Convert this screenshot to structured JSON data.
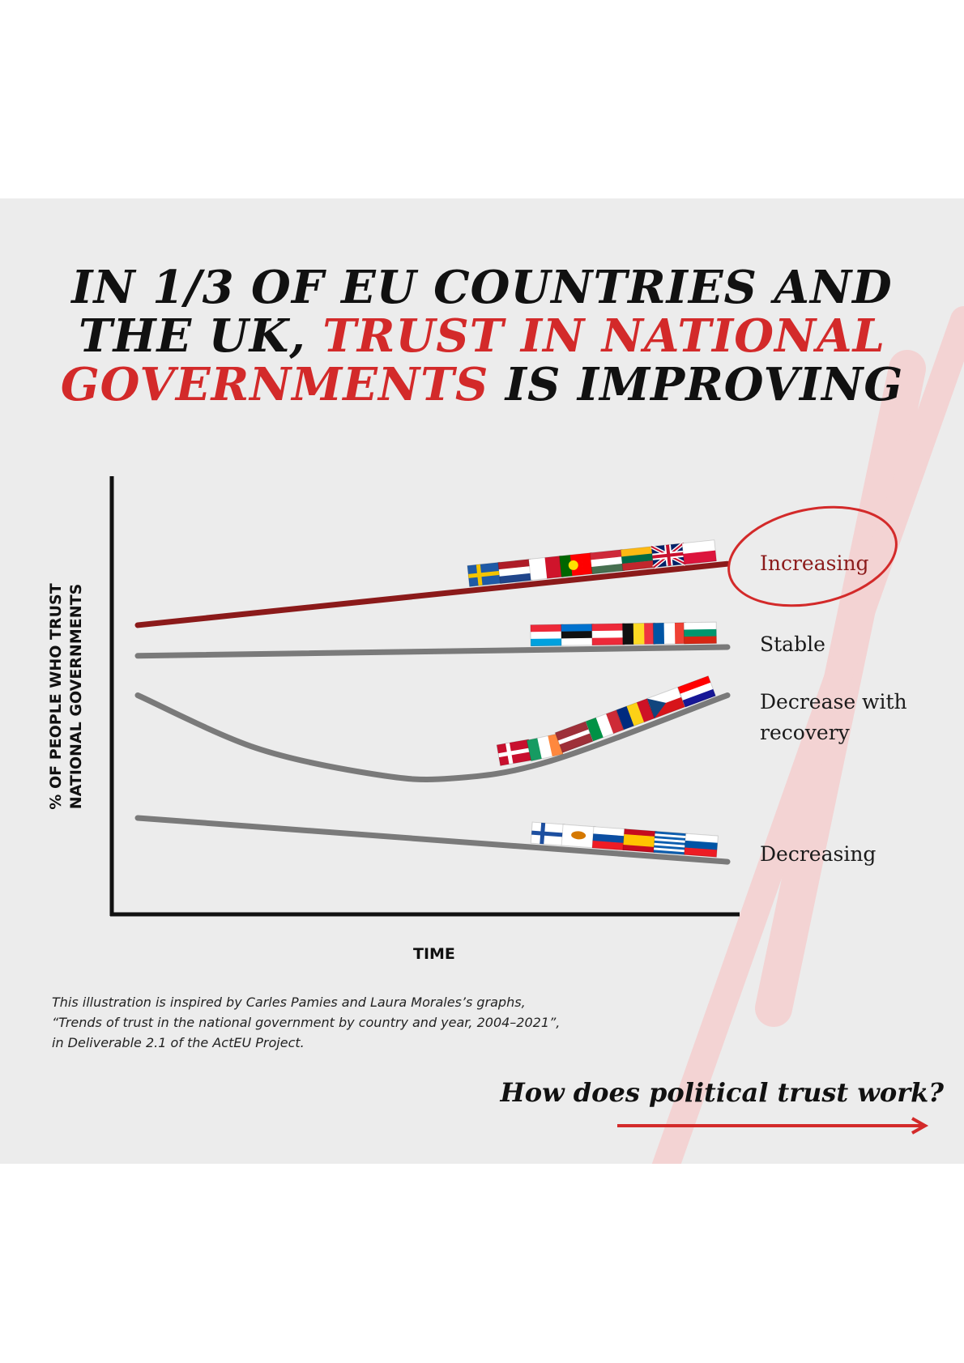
{
  "headline": {
    "line1": "IN 1/3 OF EU COUNTRIES AND",
    "line2_dark": "THE UK, ",
    "line2_accent": "TRUST IN NATIONAL",
    "line3_accent": "GOVERNMENTS",
    "line3_dark": " IS IMPROVING"
  },
  "colors": {
    "accent": "#d32a2a",
    "increasing": "#8b1a1a",
    "neutral_line": "#7a7a7a",
    "background": "#ececec"
  },
  "chart_data": {
    "type": "line",
    "title": "IN 1/3 OF EU COUNTRIES AND THE UK, TRUST IN NATIONAL GOVERNMENTS IS IMPROVING",
    "xlabel": "TIME",
    "ylabel_line1": "% OF PEOPLE WHO TRUST",
    "ylabel_line2": "NATIONAL GOVERNMENTS",
    "xlim": [
      0,
      10
    ],
    "ylim": [
      0,
      10
    ],
    "series": [
      {
        "name": "Increasing",
        "label": "Increasing",
        "color": "#8b1a1a",
        "highlighted": true,
        "x": [
          0,
          10
        ],
        "y": [
          6.6,
          8.0
        ],
        "flags": [
          "sweden",
          "netherlands",
          "malta",
          "portugal",
          "hungary",
          "lithuania",
          "united-kingdom",
          "poland"
        ]
      },
      {
        "name": "Stable",
        "label": "Stable",
        "color": "#7a7a7a",
        "x": [
          0,
          10
        ],
        "y": [
          5.9,
          6.1
        ],
        "flags": [
          "luxembourg",
          "estonia",
          "austria",
          "belgium",
          "france",
          "bulgaria"
        ]
      },
      {
        "name": "Decrease with recovery",
        "label": "Decrease with recovery",
        "color": "#7a7a7a",
        "x": [
          0,
          2,
          4,
          5.3,
          7,
          10
        ],
        "y": [
          5.0,
          3.8,
          3.2,
          3.1,
          3.5,
          5.0
        ],
        "flags": [
          "denmark",
          "ireland",
          "latvia",
          "italy",
          "romania",
          "czechia",
          "croatia"
        ]
      },
      {
        "name": "Decreasing",
        "label": "Decreasing",
        "color": "#7a7a7a",
        "x": [
          0,
          10
        ],
        "y": [
          2.2,
          1.2
        ],
        "flags": [
          "finland",
          "cyprus",
          "slovakia",
          "spain",
          "greece",
          "slovenia"
        ]
      }
    ]
  },
  "source_note": {
    "line1": "This illustration is inspired by Carles Pamies and Laura Morales’s graphs,",
    "line2": "“Trends of trust in the national government by country and year, 2004–2021”,",
    "line3": "in Deliverable 2.1 of the ActEU Project."
  },
  "cta": {
    "text": "How does political trust work?",
    "icon": "arrow-right-icon"
  }
}
